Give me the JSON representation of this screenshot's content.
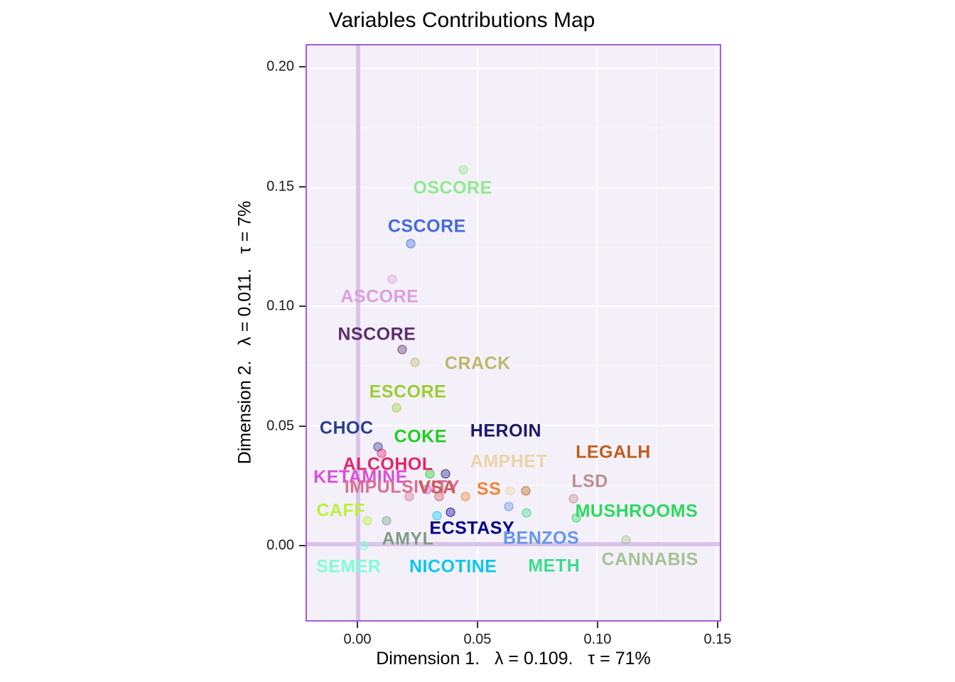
{
  "style": {
    "panel_bg": "#F4F0F9",
    "panel_border": "#A35BDB",
    "grid_major": "#FFFFFF",
    "grid_minor": "#FAF8FC",
    "reference_line": "#D9C4EA",
    "axis_text": "#1A1A1A",
    "title_color": "#000000"
  },
  "chart_data": {
    "type": "scatter",
    "title": "Variables Contributions Map",
    "xlabel": "Dimension 1.   λ = 0.109.   τ = 71%",
    "ylabel": "Dimension 2.   λ = 0.011.   τ = 7%",
    "xlim": [
      -0.0216,
      0.1515
    ],
    "ylim": [
      -0.0318,
      0.2096
    ],
    "x_ticks": {
      "values": [
        0.0,
        0.05,
        0.1,
        0.15
      ],
      "labels": [
        "0.00",
        "0.05",
        "0.10",
        "0.15"
      ]
    },
    "y_ticks": {
      "values": [
        0.0,
        0.05,
        0.1,
        0.15,
        0.2
      ],
      "labels": [
        "0.00",
        "0.05",
        "0.10",
        "0.15",
        "0.20"
      ]
    },
    "grid": true,
    "legend": "none",
    "reference_lines": {
      "x": 0,
      "y": 0
    },
    "points": [
      {
        "label": "OSCORE",
        "x": 0.0438,
        "y": 0.1573,
        "label_x": 0.0395,
        "label_y": 0.1495,
        "color": "#8DEB8D"
      },
      {
        "label": "CSCORE",
        "x": 0.0219,
        "y": 0.1262,
        "label_x": 0.0287,
        "label_y": 0.1335,
        "color": "#4169E1"
      },
      {
        "label": "ASCORE",
        "x": 0.0142,
        "y": 0.1115,
        "label_x": 0.0089,
        "label_y": 0.104,
        "color": "#DDA0DD"
      },
      {
        "label": "NSCORE",
        "x": 0.0183,
        "y": 0.0818,
        "label_x": 0.0077,
        "label_y": 0.0882,
        "color": "#5C2D6E"
      },
      {
        "label": "CRACK",
        "x": 0.0237,
        "y": 0.0765,
        "label_x": 0.05,
        "label_y": 0.076,
        "color": "#BDB76B"
      },
      {
        "label": "ESCORE",
        "x": 0.016,
        "y": 0.0573,
        "label_x": 0.0207,
        "label_y": 0.064,
        "color": "#9ACD32"
      },
      {
        "label": "CHOC",
        "x": 0.0083,
        "y": 0.041,
        "label_x": -0.005,
        "label_y": 0.0487,
        "color": "#27408B"
      },
      {
        "label": "COKE",
        "x": 0.0299,
        "y": 0.0297,
        "label_x": 0.026,
        "label_y": 0.0452,
        "color": "#21CE21"
      },
      {
        "label": "HEROIN",
        "x": 0.0364,
        "y": 0.0297,
        "label_x": 0.0618,
        "label_y": 0.0475,
        "color": "#191970"
      },
      {
        "label": "ALCOHOL",
        "x": 0.0098,
        "y": 0.0383,
        "label_x": 0.0124,
        "label_y": 0.0336,
        "color": "#E3256B"
      },
      {
        "label": "AMPHET",
        "x": 0.0636,
        "y": 0.0226,
        "label_x": 0.063,
        "label_y": 0.0347,
        "color": "#EBD5A7"
      },
      {
        "label": "LEGALH",
        "x": 0.0701,
        "y": 0.0226,
        "label_x": 0.1068,
        "label_y": 0.0386,
        "color": "#C05E1C"
      },
      {
        "label": "KETAMINE",
        "x": 0.0287,
        "y": 0.0232,
        "label_x": 0.0009,
        "label_y": 0.0282,
        "color": "#D94FD9"
      },
      {
        "label": "IMPULSIVITY",
        "x": 0.0213,
        "y": 0.0202,
        "label_x": 0.0183,
        "label_y": 0.024,
        "color": "#DB7093"
      },
      {
        "label": "VSA",
        "x": 0.0337,
        "y": 0.0202,
        "label_x": 0.033,
        "label_y": 0.0238,
        "color": "#CD5C5C"
      },
      {
        "label": "SS",
        "x": 0.0447,
        "y": 0.0202,
        "label_x": 0.0547,
        "label_y": 0.0232,
        "color": "#F08434"
      },
      {
        "label": "LSD",
        "x": 0.0902,
        "y": 0.0193,
        "label_x": 0.097,
        "label_y": 0.0264,
        "color": "#BC8F8F"
      },
      {
        "label": "CAFF",
        "x": 0.0038,
        "y": 0.0101,
        "label_x": -0.0074,
        "label_y": 0.0143,
        "color": "#BDF03C"
      },
      {
        "label": "MUSHROOMS",
        "x": 0.0914,
        "y": 0.0113,
        "label_x": 0.1166,
        "label_y": 0.014,
        "color": "#2BD95E"
      },
      {
        "label": "ECSTASY",
        "x": 0.0385,
        "y": 0.0137,
        "label_x": 0.0476,
        "label_y": 0.0068,
        "color": "#00008B"
      },
      {
        "label": "AMYL",
        "x": 0.0118,
        "y": 0.0101,
        "label_x": 0.0207,
        "label_y": 0.0021,
        "color": "#7E9D84"
      },
      {
        "label": "BENZOS",
        "x": 0.063,
        "y": 0.016,
        "label_x": 0.0766,
        "label_y": 0.0024,
        "color": "#6495ED"
      },
      {
        "label": "NICOTINE",
        "x": 0.0328,
        "y": 0.0122,
        "label_x": 0.0397,
        "label_y": -0.0095,
        "color": "#0AC6F0"
      },
      {
        "label": "METH",
        "x": 0.0704,
        "y": 0.0134,
        "label_x": 0.082,
        "label_y": -0.0092,
        "color": "#3BDC8F"
      },
      {
        "label": "CANNABIS",
        "x": 0.1121,
        "y": 0.0018,
        "label_x": 0.1222,
        "label_y": -0.0065,
        "color": "#A4C396"
      },
      {
        "label": "SEMER",
        "x": 0.0021,
        "y": -0.0006,
        "label_x": -0.0041,
        "label_y": -0.0095,
        "color": "#7FFFD4"
      }
    ]
  }
}
